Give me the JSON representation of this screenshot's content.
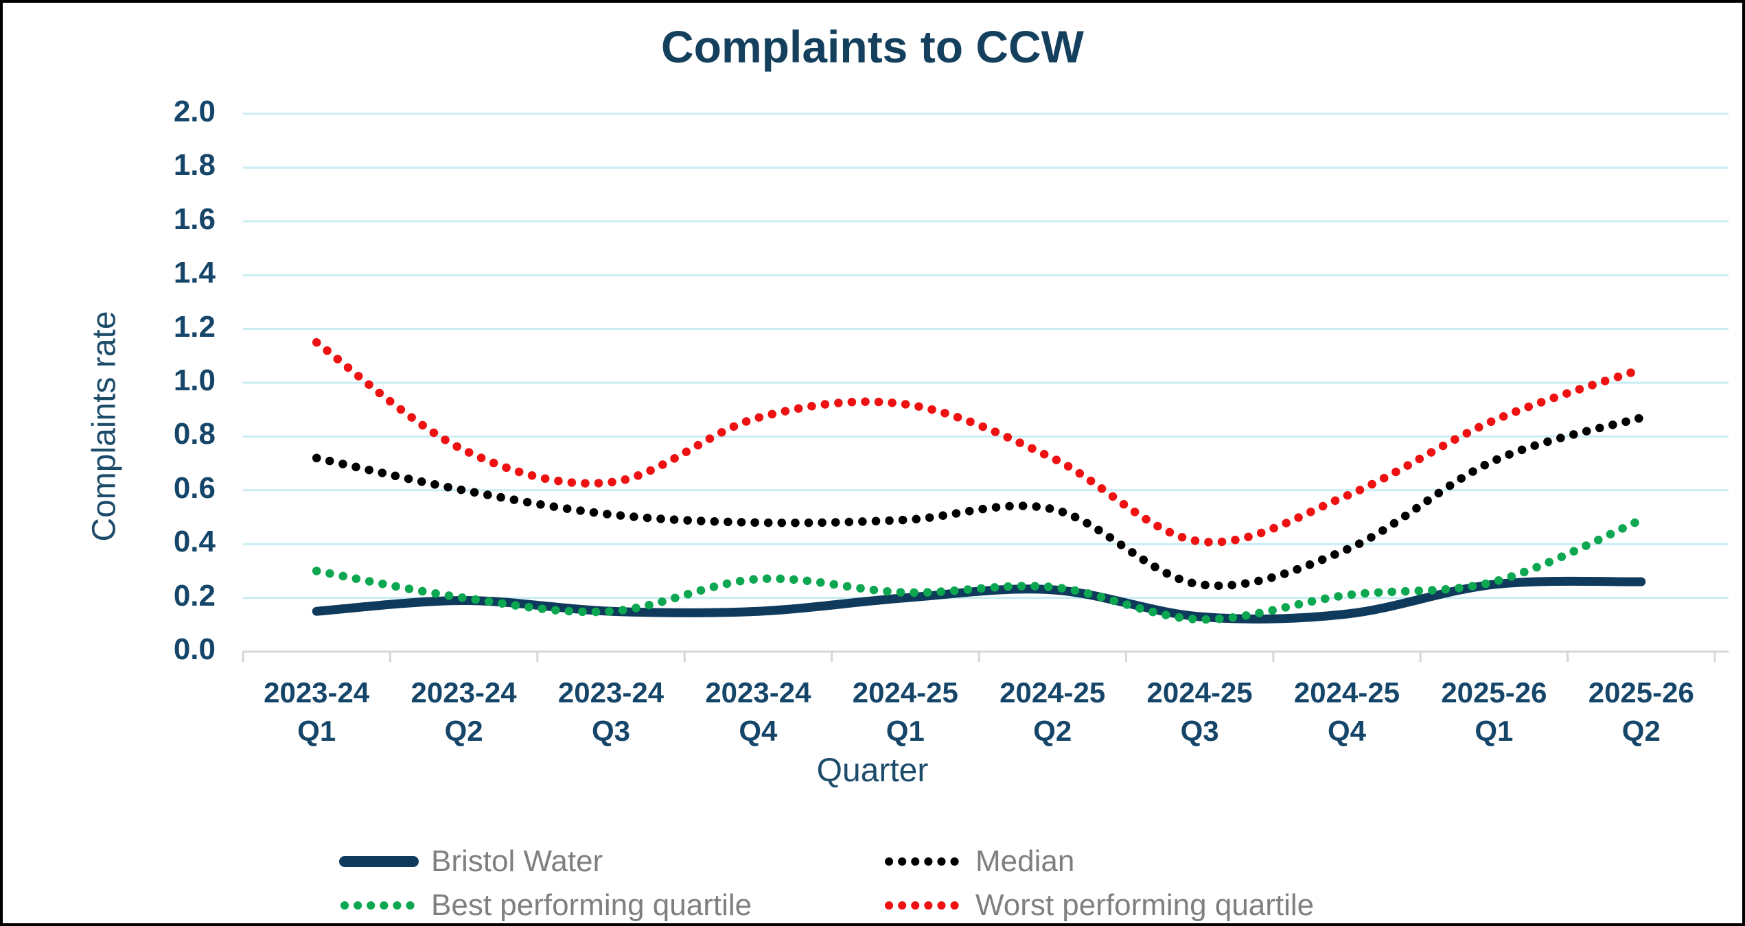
{
  "title": "Complaints to CCW",
  "colors": {
    "title_text": "#14405e",
    "axis_label_text": "#1d4c6b",
    "tick_label_text": "#15466a",
    "gridline": "#c8edf2",
    "axis_line": "#d6d6d6",
    "legend_text": "#7f7f7f",
    "bristol_water": "#0f3a5c",
    "median": "#000000",
    "best_quartile": "#0ca750",
    "worst_quartile": "#ee1111"
  },
  "chart_data": {
    "type": "line",
    "title": "Complaints to CCW",
    "xlabel": "Quarter",
    "ylabel": "Complaints rate",
    "ylim": [
      0,
      2.0
    ],
    "y_tick_step": 0.2,
    "y_ticks": [
      "0.0",
      "0.2",
      "0.4",
      "0.6",
      "0.8",
      "1.0",
      "1.2",
      "1.4",
      "1.6",
      "1.8",
      "2.0"
    ],
    "grid": true,
    "legend_position": "bottom",
    "categories": [
      "2023-24 Q1",
      "2023-24 Q2",
      "2023-24 Q3",
      "2023-24 Q4",
      "2024-25 Q1",
      "2024-25 Q2",
      "2024-25 Q3",
      "2024-25 Q4",
      "2025-26 Q1",
      "2025-26 Q2"
    ],
    "categories_two_line": [
      {
        "year": "2023-24",
        "quarter": "Q1"
      },
      {
        "year": "2023-24",
        "quarter": "Q2"
      },
      {
        "year": "2023-24",
        "quarter": "Q3"
      },
      {
        "year": "2023-24",
        "quarter": "Q4"
      },
      {
        "year": "2024-25",
        "quarter": "Q1"
      },
      {
        "year": "2024-25",
        "quarter": "Q2"
      },
      {
        "year": "2024-25",
        "quarter": "Q3"
      },
      {
        "year": "2024-25",
        "quarter": "Q4"
      },
      {
        "year": "2025-26",
        "quarter": "Q1"
      },
      {
        "year": "2025-26",
        "quarter": "Q2"
      }
    ],
    "series": [
      {
        "name": "Bristol Water",
        "style": "solid",
        "color": "#0f3a5c",
        "values": [
          0.15,
          0.19,
          0.15,
          0.15,
          0.2,
          0.23,
          0.13,
          0.14,
          0.25,
          0.26
        ]
      },
      {
        "name": "Median",
        "style": "dotted",
        "color": "#000000",
        "values": [
          0.72,
          0.6,
          0.51,
          0.48,
          0.49,
          0.53,
          0.25,
          0.38,
          0.71,
          0.87
        ]
      },
      {
        "name": "Best performing quartile",
        "style": "dotted",
        "color": "#0ca750",
        "values": [
          0.3,
          0.2,
          0.15,
          0.27,
          0.22,
          0.24,
          0.12,
          0.21,
          0.26,
          0.49
        ]
      },
      {
        "name": "Worst performing quartile",
        "style": "dotted",
        "color": "#ee1111",
        "values": [
          1.15,
          0.75,
          0.63,
          0.87,
          0.92,
          0.72,
          0.41,
          0.58,
          0.86,
          1.05
        ]
      }
    ]
  }
}
